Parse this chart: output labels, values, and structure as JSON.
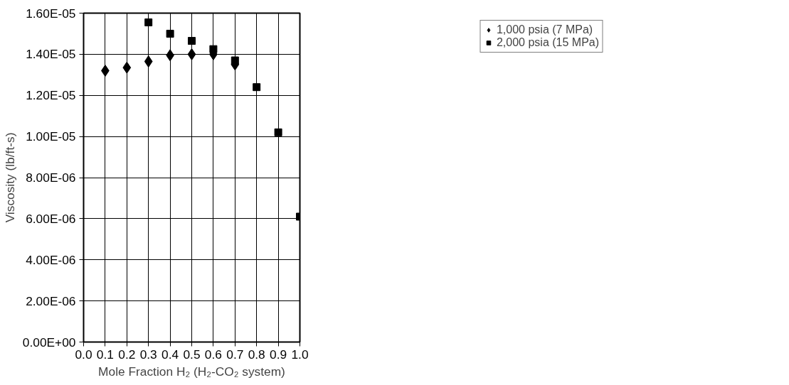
{
  "chart_data": {
    "type": "scatter",
    "xlabel": "Mole Fraction H₂ (H₂-CO₂ system)",
    "ylabel": "Viscosity (lb/ft-s)",
    "series": [
      {
        "name": "1,000 psia (7 MPa)",
        "color": "#000000",
        "marker": "diamond",
        "x": [
          0.1,
          0.2,
          0.3,
          0.4,
          0.5,
          0.6,
          0.7
        ],
        "values": [
          1.32e-05,
          1.335e-05,
          1.365e-05,
          1.395e-05,
          1.4e-05,
          1.4e-05,
          1.35e-05
        ]
      },
      {
        "name": "2,000 psia (15 MPa)",
        "color": "#000000",
        "marker": "square",
        "x": [
          0.3,
          0.4,
          0.5,
          0.6,
          0.7,
          0.8,
          0.9,
          1.0
        ],
        "values": [
          1.555e-05,
          1.5e-05,
          1.465e-05,
          1.425e-05,
          1.37e-05,
          1.24e-05,
          1.02e-05,
          6.1e-06
        ]
      }
    ],
    "xlim": [
      0,
      1
    ],
    "ylim": [
      0,
      1.6e-05
    ],
    "xticks": [
      {
        "value": 0,
        "label": "0.0"
      },
      0.1,
      0.2,
      0.3,
      0.4,
      0.5,
      0.6,
      0.7,
      0.8,
      0.9,
      {
        "value": 1,
        "label": "1.0"
      }
    ],
    "yticks": [
      {
        "value": 0,
        "label": "0.00E+00"
      },
      {
        "value": 2e-06,
        "label": "2.00E-06"
      },
      {
        "value": 4e-06,
        "label": "4.00E-06"
      },
      {
        "value": 6e-06,
        "label": "6.00E-06"
      },
      {
        "value": 8e-06,
        "label": "8.00E-06"
      },
      {
        "value": 1e-05,
        "label": "1.00E-05"
      },
      {
        "value": 1.2e-05,
        "label": "1.20E-05"
      },
      {
        "value": 1.4e-05,
        "label": "1.40E-05"
      },
      {
        "value": 1.6e-05,
        "label": "1.60E-05"
      }
    ],
    "grid": true,
    "legend": "top right"
  }
}
